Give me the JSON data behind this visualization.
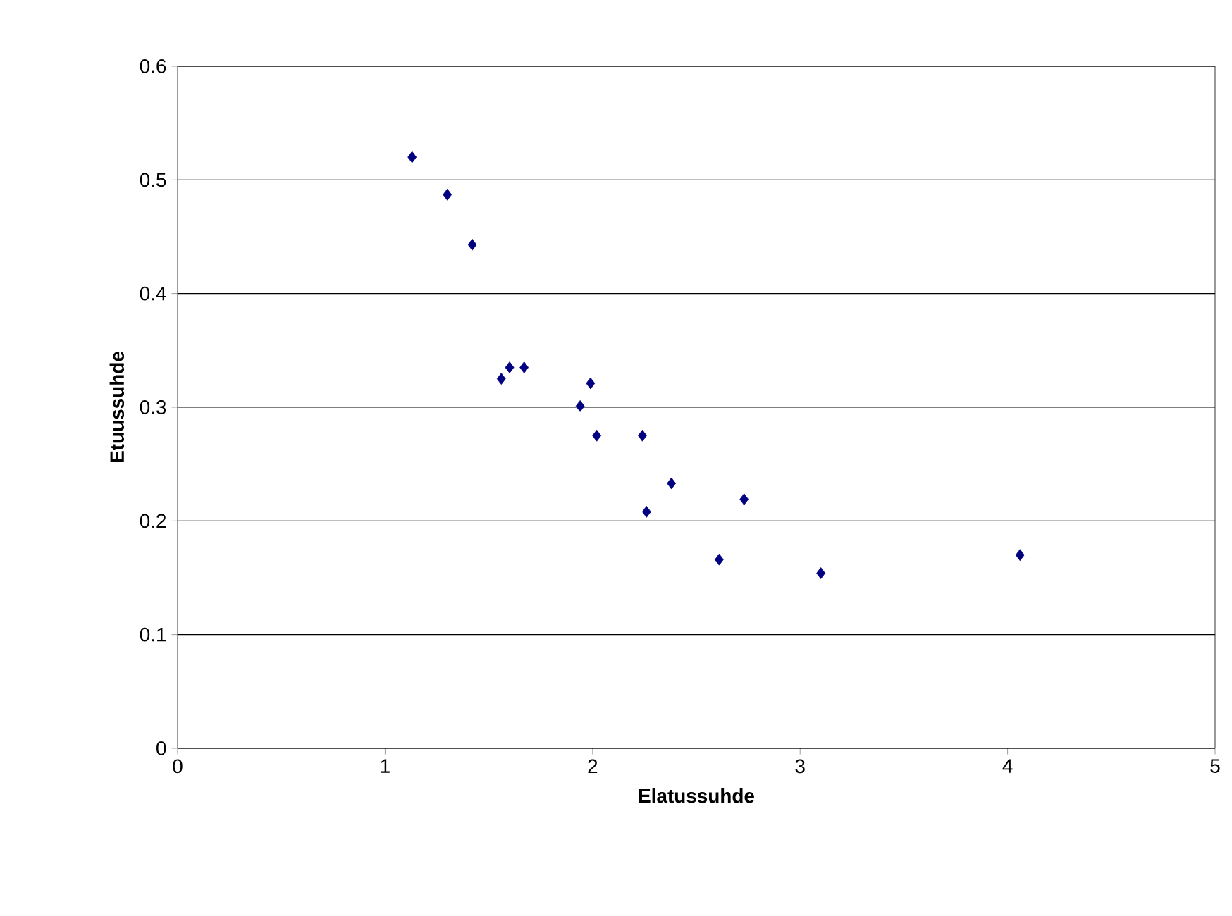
{
  "chart_data": {
    "type": "scatter",
    "xlabel": "Elatussuhde",
    "ylabel": "Etuussuhde",
    "x": [
      1.13,
      1.3,
      1.42,
      1.56,
      1.6,
      1.67,
      1.94,
      1.99,
      2.02,
      2.24,
      2.26,
      2.38,
      2.61,
      2.73,
      3.1,
      4.06
    ],
    "values": [
      0.52,
      0.487,
      0.443,
      0.325,
      0.335,
      0.335,
      0.301,
      0.321,
      0.275,
      0.275,
      0.208,
      0.233,
      0.166,
      0.219,
      0.154,
      0.17
    ],
    "color": "#000080",
    "marker": "diamond",
    "grid": "y",
    "xlim": [
      0,
      5
    ],
    "xticks": [
      0,
      1,
      2,
      3,
      4,
      5
    ],
    "ylim": [
      0,
      0.6
    ],
    "yticks": [
      0,
      0.1,
      0.2,
      0.3,
      0.4,
      0.5,
      0.6
    ]
  }
}
